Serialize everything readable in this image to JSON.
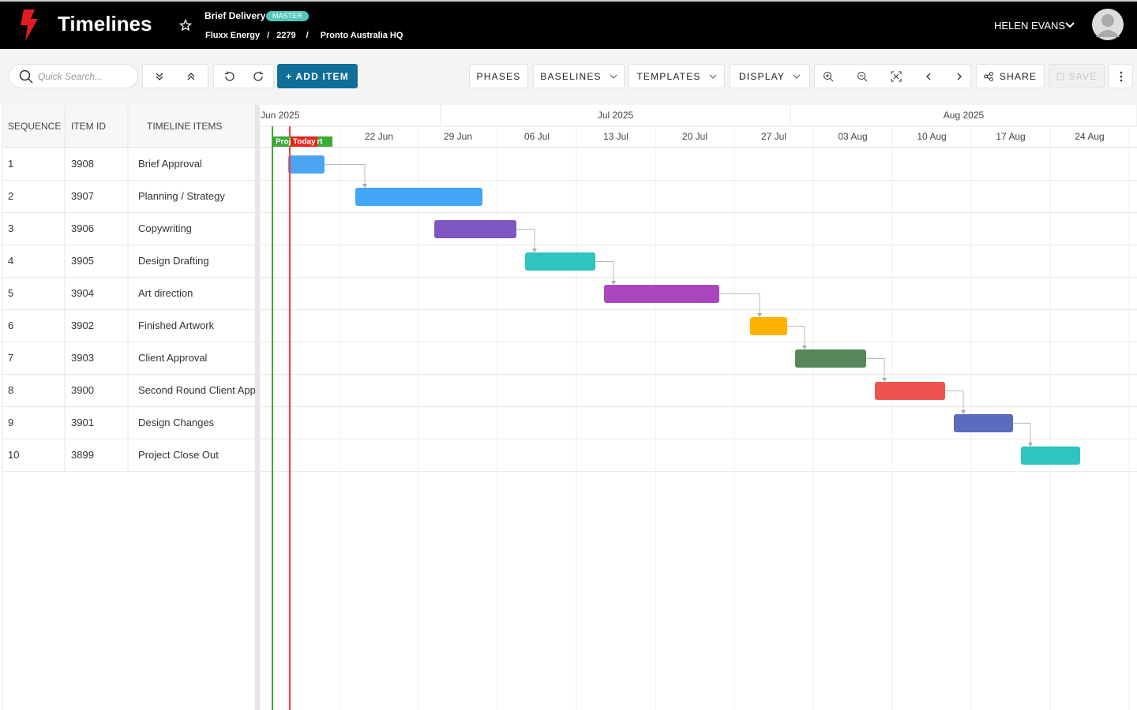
{
  "header": {
    "title": "Timelines",
    "project": "Brief Delivery",
    "badge": "MASTER",
    "breadcrumb": [
      "Fluxx Energy",
      "2279",
      "Pronto Australia HQ"
    ],
    "user": "HELEN EVANS"
  },
  "toolbar": {
    "search_placeholder": "Quick Search...",
    "add_item": "+ ADD ITEM",
    "menus": [
      "PHASES",
      "BASELINES",
      "TEMPLATES",
      "DISPLAY"
    ],
    "share": "SHARE",
    "save": "SAVE"
  },
  "table": {
    "columns": [
      "SEQUENCE",
      "ITEM ID",
      "TIMELINE ITEMS"
    ],
    "rows": [
      [
        "1",
        "3908",
        "Brief Approval"
      ],
      [
        "2",
        "3907",
        "Planning / Strategy"
      ],
      [
        "3",
        "3906",
        "Copywriting"
      ],
      [
        "4",
        "3905",
        "Design Drafting"
      ],
      [
        "5",
        "3904",
        "Art direction"
      ],
      [
        "6",
        "3902",
        "Finished Artwork"
      ],
      [
        "7",
        "3903",
        "Client Approval"
      ],
      [
        "8",
        "3900",
        "Second Round Client Approval"
      ],
      [
        "9",
        "3901",
        "Design Changes"
      ],
      [
        "10",
        "3899",
        "Project Close Out"
      ]
    ]
  },
  "timeline": {
    "months": [
      "Jun 2025",
      "Jul 2025",
      "Aug 2025"
    ],
    "weeks": [
      "22 Jun",
      "29 Jun",
      "06 Jul",
      "13 Jul",
      "20 Jul",
      "27 Jul",
      "03 Aug",
      "10 Aug",
      "17 Aug",
      "24 Aug"
    ],
    "markers": [
      "Project Start",
      "Today"
    ]
  }
}
